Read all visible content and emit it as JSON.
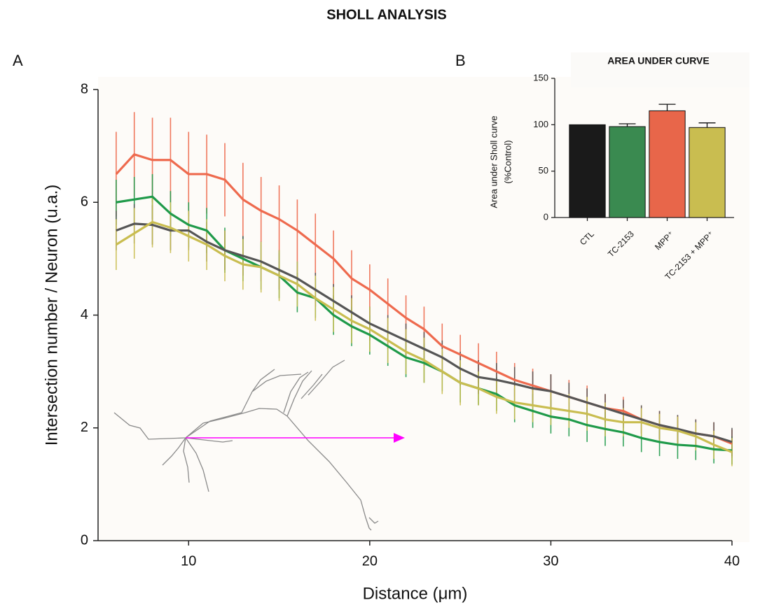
{
  "title": "SHOLL ANALYSIS",
  "chart_data": [
    {
      "type": "line",
      "panel": "A",
      "x_label": "Distance (μm)",
      "y_label": "Intersection number / Neuron (u.a.)",
      "x": [
        6,
        7,
        8,
        9,
        10,
        11,
        12,
        13,
        14,
        15,
        16,
        17,
        18,
        19,
        20,
        21,
        22,
        23,
        24,
        25,
        26,
        27,
        28,
        29,
        30,
        31,
        32,
        33,
        34,
        35,
        36,
        37,
        38,
        39,
        40
      ],
      "xlim": [
        5,
        40
      ],
      "xticks": [
        10,
        20,
        30,
        40
      ],
      "ylim": [
        0,
        8
      ],
      "yticks": [
        0,
        2,
        4,
        6,
        8
      ],
      "series": [
        {
          "color": "#ee6a4e",
          "values": [
            6.5,
            6.85,
            6.75,
            6.75,
            6.5,
            6.5,
            6.4,
            6.05,
            5.85,
            5.7,
            5.5,
            5.25,
            5.0,
            4.65,
            4.45,
            4.2,
            3.95,
            3.75,
            3.45,
            3.3,
            3.15,
            3.0,
            2.85,
            2.75,
            2.65,
            2.55,
            2.45,
            2.35,
            2.3,
            2.15,
            2.05,
            1.97,
            1.9,
            1.85,
            1.72
          ],
          "errors": [
            0.75,
            0.75,
            0.75,
            0.75,
            0.75,
            0.7,
            0.65,
            0.65,
            0.6,
            0.6,
            0.55,
            0.55,
            0.5,
            0.5,
            0.45,
            0.45,
            0.4,
            0.4,
            0.4,
            0.35,
            0.35,
            0.35,
            0.3,
            0.3,
            0.3,
            0.3,
            0.3,
            0.25,
            0.25,
            0.25,
            0.25,
            0.25,
            0.25,
            0.25,
            0.25
          ]
        },
        {
          "color": "#1f9a4a",
          "values": [
            6.0,
            6.05,
            6.1,
            5.8,
            5.6,
            5.5,
            5.15,
            5.0,
            4.85,
            4.7,
            4.4,
            4.3,
            4.0,
            3.8,
            3.65,
            3.45,
            3.25,
            3.15,
            3.0,
            2.8,
            2.7,
            2.6,
            2.4,
            2.3,
            2.2,
            2.15,
            2.05,
            1.98,
            1.92,
            1.82,
            1.75,
            1.7,
            1.68,
            1.62,
            1.6
          ],
          "errors": [
            0.4,
            0.4,
            0.4,
            0.4,
            0.4,
            0.4,
            0.4,
            0.4,
            0.4,
            0.4,
            0.35,
            0.35,
            0.35,
            0.35,
            0.35,
            0.35,
            0.35,
            0.35,
            0.35,
            0.35,
            0.3,
            0.3,
            0.3,
            0.3,
            0.3,
            0.3,
            0.3,
            0.3,
            0.25,
            0.25,
            0.25,
            0.25,
            0.25,
            0.25,
            0.25
          ]
        },
        {
          "color": "#555555",
          "values": [
            5.5,
            5.62,
            5.6,
            5.5,
            5.5,
            5.3,
            5.15,
            5.05,
            4.95,
            4.8,
            4.65,
            4.45,
            4.25,
            4.05,
            3.85,
            3.7,
            3.55,
            3.4,
            3.25,
            3.05,
            2.9,
            2.85,
            2.78,
            2.7,
            2.65,
            2.55,
            2.45,
            2.35,
            2.25,
            2.15,
            2.05,
            1.98,
            1.9,
            1.85,
            1.75
          ],
          "errors": [
            0.35,
            0.35,
            0.35,
            0.35,
            0.35,
            0.35,
            0.35,
            0.35,
            0.35,
            0.35,
            0.3,
            0.3,
            0.3,
            0.3,
            0.3,
            0.3,
            0.3,
            0.3,
            0.3,
            0.3,
            0.3,
            0.3,
            0.3,
            0.3,
            0.3,
            0.25,
            0.25,
            0.25,
            0.25,
            0.25,
            0.25,
            0.25,
            0.25,
            0.25,
            0.25
          ]
        },
        {
          "color": "#c9bd50",
          "values": [
            5.25,
            5.45,
            5.65,
            5.55,
            5.4,
            5.25,
            5.05,
            4.9,
            4.85,
            4.7,
            4.55,
            4.3,
            4.1,
            3.9,
            3.75,
            3.55,
            3.35,
            3.2,
            3.0,
            2.8,
            2.7,
            2.55,
            2.45,
            2.4,
            2.35,
            2.3,
            2.25,
            2.15,
            2.1,
            2.1,
            2.0,
            1.95,
            1.85,
            1.7,
            1.57
          ],
          "errors": [
            0.45,
            0.45,
            0.45,
            0.45,
            0.45,
            0.45,
            0.45,
            0.45,
            0.45,
            0.45,
            0.4,
            0.4,
            0.4,
            0.4,
            0.4,
            0.4,
            0.4,
            0.4,
            0.4,
            0.4,
            0.3,
            0.3,
            0.3,
            0.3,
            0.3,
            0.3,
            0.3,
            0.3,
            0.25,
            0.25,
            0.25,
            0.25,
            0.25,
            0.25,
            0.25
          ]
        }
      ]
    },
    {
      "type": "bar",
      "panel": "B",
      "title": "AREA UNDER CURVE",
      "y_label": [
        "Area under Sholl curve",
        "(%Control)"
      ],
      "categories": [
        "CTL",
        "TC-2153",
        "MPP⁺",
        "TC-2153 + MPP⁺"
      ],
      "values": [
        100,
        98,
        115,
        97
      ],
      "errors": [
        null,
        3,
        7,
        5
      ],
      "colors": [
        "#1a1a1a",
        "#3a8a50",
        "#e8664a",
        "#c9bd50"
      ],
      "ylim": [
        0,
        150
      ],
      "yticks": [
        0,
        50,
        100,
        150
      ]
    }
  ]
}
